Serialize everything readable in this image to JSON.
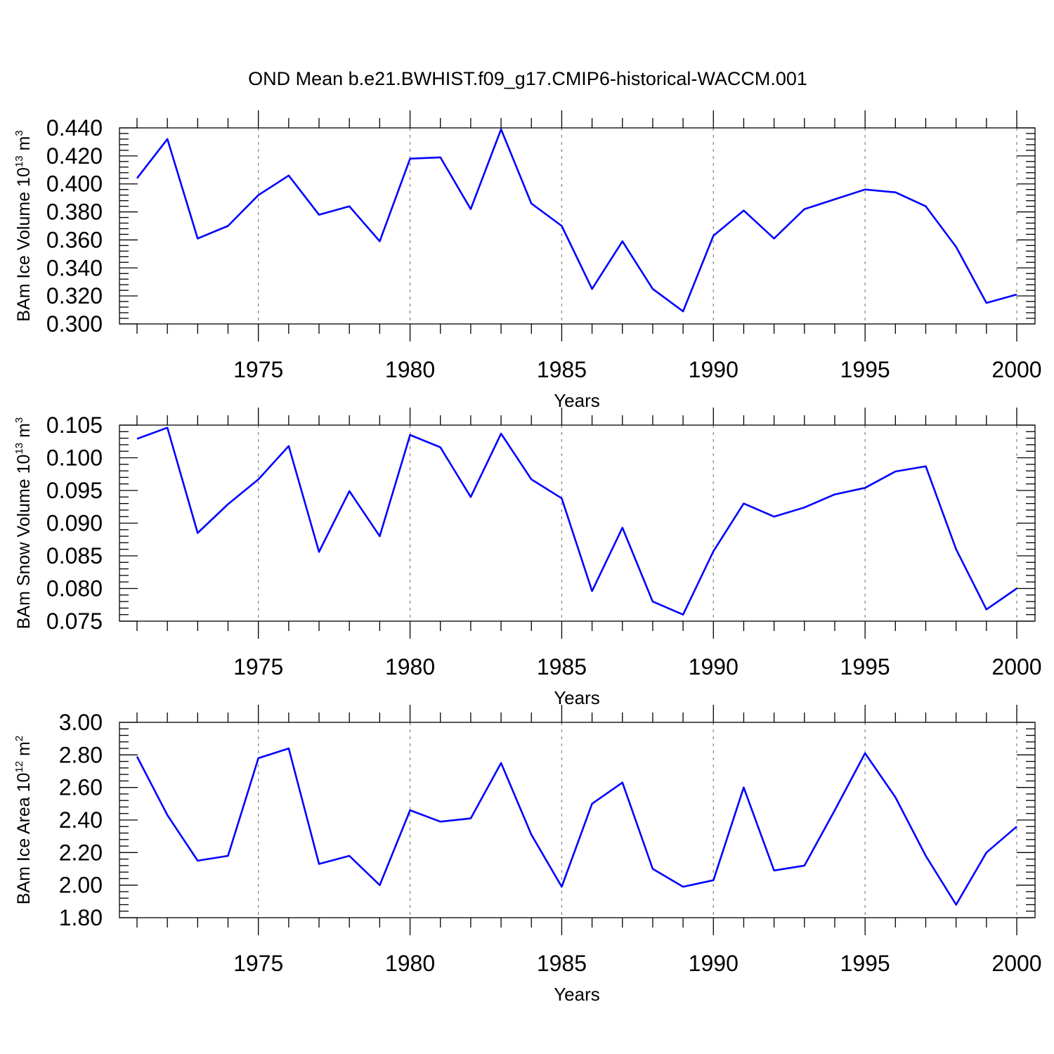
{
  "title": "OND Mean b.e21.BWHIST.f09_g17.CMIP6-historical-WACCM.001",
  "chart_data": [
    {
      "type": "line",
      "ylabel": {
        "text": "BAm Ice Volume 10",
        "exp": "13",
        "unit": " m",
        "unit_exp": "3"
      },
      "xlabel": "Years",
      "xlim": [
        1971,
        2000
      ],
      "ylim": [
        0.3,
        0.44
      ],
      "x_ticks": [
        1975,
        1980,
        1985,
        1990,
        1995,
        2000
      ],
      "x_tick_labels": [
        "1975",
        "1980",
        "1985",
        "1990",
        "1995",
        "2000"
      ],
      "y_ticks": [
        0.3,
        0.32,
        0.34,
        0.36,
        0.38,
        0.4,
        0.42,
        0.44
      ],
      "y_tick_labels": [
        "0.300",
        "0.320",
        "0.340",
        "0.360",
        "0.380",
        "0.400",
        "0.420",
        "0.440"
      ],
      "grid": "vertical dashed at major x ticks",
      "color": "#0000ff",
      "x": [
        1971,
        1972,
        1973,
        1974,
        1975,
        1976,
        1977,
        1978,
        1979,
        1980,
        1981,
        1982,
        1983,
        1984,
        1985,
        1986,
        1987,
        1988,
        1989,
        1990,
        1991,
        1992,
        1993,
        1994,
        1995,
        1996,
        1997,
        1998,
        1999,
        2000
      ],
      "values": [
        0.404,
        0.432,
        0.361,
        0.37,
        0.392,
        0.406,
        0.378,
        0.384,
        0.359,
        0.418,
        0.419,
        0.382,
        0.439,
        0.386,
        0.37,
        0.325,
        0.359,
        0.325,
        0.309,
        0.363,
        0.381,
        0.361,
        0.382,
        0.389,
        0.396,
        0.394,
        0.384,
        0.355,
        0.315,
        0.321
      ]
    },
    {
      "type": "line",
      "ylabel": {
        "text": "BAm Snow Volume 10",
        "exp": "13",
        "unit": " m",
        "unit_exp": "3"
      },
      "xlabel": "Years",
      "xlim": [
        1971,
        2000
      ],
      "ylim": [
        0.075,
        0.105
      ],
      "x_ticks": [
        1975,
        1980,
        1985,
        1990,
        1995,
        2000
      ],
      "x_tick_labels": [
        "1975",
        "1980",
        "1985",
        "1990",
        "1995",
        "2000"
      ],
      "y_ticks": [
        0.075,
        0.08,
        0.085,
        0.09,
        0.095,
        0.1,
        0.105
      ],
      "y_tick_labels": [
        "0.075",
        "0.080",
        "0.085",
        "0.090",
        "0.095",
        "0.100",
        "0.105"
      ],
      "grid": "vertical dashed at major x ticks",
      "color": "#0000ff",
      "x": [
        1971,
        1972,
        1973,
        1974,
        1975,
        1976,
        1977,
        1978,
        1979,
        1980,
        1981,
        1982,
        1983,
        1984,
        1985,
        1986,
        1987,
        1988,
        1989,
        1990,
        1991,
        1992,
        1993,
        1994,
        1995,
        1996,
        1997,
        1998,
        1999,
        2000
      ],
      "values": [
        0.1029,
        0.1046,
        0.0885,
        0.0929,
        0.0967,
        0.1018,
        0.0856,
        0.0949,
        0.088,
        0.1035,
        0.1016,
        0.094,
        0.1037,
        0.0967,
        0.0938,
        0.0796,
        0.0893,
        0.078,
        0.076,
        0.0857,
        0.093,
        0.091,
        0.0924,
        0.0944,
        0.0954,
        0.0979,
        0.0987,
        0.086,
        0.0768,
        0.08
      ]
    },
    {
      "type": "line",
      "ylabel": {
        "text": "BAm Ice Area 10",
        "exp": "12",
        "unit": " m",
        "unit_exp": "2"
      },
      "xlabel": "Years",
      "xlim": [
        1971,
        2000
      ],
      "ylim": [
        1.8,
        3.0
      ],
      "x_ticks": [
        1975,
        1980,
        1985,
        1990,
        1995,
        2000
      ],
      "x_tick_labels": [
        "1975",
        "1980",
        "1985",
        "1990",
        "1995",
        "2000"
      ],
      "y_ticks": [
        1.8,
        2.0,
        2.2,
        2.4,
        2.6,
        2.8,
        3.0
      ],
      "y_tick_labels": [
        "1.80",
        "2.00",
        "2.20",
        "2.40",
        "2.60",
        "2.80",
        "3.00"
      ],
      "grid": "vertical dashed at major x ticks",
      "color": "#0000ff",
      "x": [
        1971,
        1972,
        1973,
        1974,
        1975,
        1976,
        1977,
        1978,
        1979,
        1980,
        1981,
        1982,
        1983,
        1984,
        1985,
        1986,
        1987,
        1988,
        1989,
        1990,
        1991,
        1992,
        1993,
        1994,
        1995,
        1996,
        1997,
        1998,
        1999,
        2000
      ],
      "values": [
        2.79,
        2.43,
        2.15,
        2.18,
        2.78,
        2.84,
        2.13,
        2.18,
        2.0,
        2.46,
        2.39,
        2.41,
        2.75,
        2.31,
        1.99,
        2.5,
        2.63,
        2.1,
        1.99,
        2.03,
        2.6,
        2.09,
        2.12,
        2.46,
        2.81,
        2.54,
        2.18,
        1.88,
        2.2,
        2.36
      ]
    }
  ]
}
